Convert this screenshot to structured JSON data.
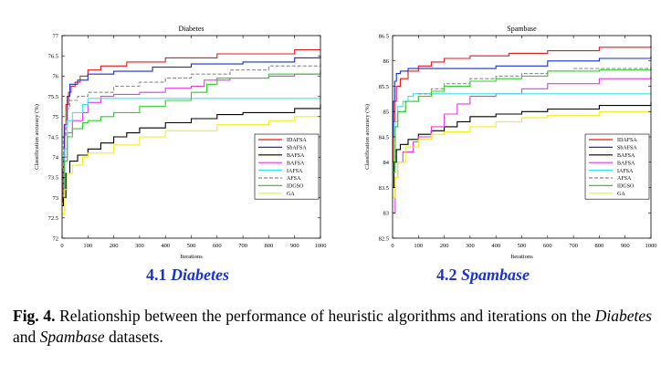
{
  "figure": {
    "panel_labels": [
      {
        "number": "4.1",
        "name": "Diabetes"
      },
      {
        "number": "4.2",
        "name": "Spambase"
      }
    ],
    "caption": {
      "fig_no": "Fig. 4.",
      "part1": " Relationship between the performance of heuristic algorithms and iterations on the ",
      "dataset1": "Diabetes",
      "part2": " and ",
      "dataset2": "Spambase",
      "part3": " datasets."
    }
  },
  "colors": {
    "IDAFSA": "#e8191b",
    "SbAFSA": "#1a2fd6",
    "BAFSA": "#000000",
    "BAFSA_m": "#e33ce6",
    "IAFSA": "#36e6ee",
    "AFSA": "#8c8c8c",
    "IDGSO": "#2fd02a",
    "GA": "#f2ee1c"
  },
  "chart_data": [
    {
      "type": "line",
      "title": "Diabetes",
      "xlabel": "Iterations",
      "ylabel": "Classification accuracy (%)",
      "xlim": [
        0,
        1000
      ],
      "ylim": [
        72,
        77
      ],
      "xticks": [
        "0",
        "100",
        "200",
        "300",
        "400",
        "500",
        "600",
        "700",
        "800",
        "900",
        "1000"
      ],
      "yticks": [
        "72",
        "72.5",
        "73",
        "73.5",
        "74",
        "74.5",
        "75",
        "75.5",
        "76",
        "76.5",
        "77"
      ],
      "grid": false,
      "legend_position": "middle-right",
      "series": [
        {
          "name": "IDAFSA",
          "color_key": "IDAFSA",
          "dashed": false,
          "points": [
            [
              0,
              72.9
            ],
            [
              3,
              73.7
            ],
            [
              8,
              74.8
            ],
            [
              15,
              75.3
            ],
            [
              25,
              75.6
            ],
            [
              35,
              75.75
            ],
            [
              50,
              75.85
            ],
            [
              70,
              76.0
            ],
            [
              100,
              76.15
            ],
            [
              150,
              76.25
            ],
            [
              250,
              76.35
            ],
            [
              400,
              76.45
            ],
            [
              600,
              76.55
            ],
            [
              900,
              76.65
            ],
            [
              1000,
              76.65
            ]
          ]
        },
        {
          "name": "SbAFSA",
          "color_key": "SbAFSA",
          "dashed": false,
          "points": [
            [
              0,
              73.1
            ],
            [
              5,
              74.0
            ],
            [
              10,
              74.8
            ],
            [
              20,
              75.5
            ],
            [
              30,
              75.8
            ],
            [
              60,
              75.9
            ],
            [
              100,
              76.05
            ],
            [
              200,
              76.12
            ],
            [
              350,
              76.22
            ],
            [
              500,
              76.3
            ],
            [
              700,
              76.35
            ],
            [
              900,
              76.45
            ],
            [
              1000,
              76.5
            ]
          ]
        },
        {
          "name": "BAFSA",
          "color_key": "BAFSA",
          "dashed": false,
          "points": [
            [
              0,
              72.8
            ],
            [
              5,
              73.0
            ],
            [
              15,
              73.6
            ],
            [
              30,
              73.9
            ],
            [
              60,
              74.05
            ],
            [
              100,
              74.2
            ],
            [
              150,
              74.35
            ],
            [
              200,
              74.5
            ],
            [
              250,
              74.6
            ],
            [
              300,
              74.72
            ],
            [
              400,
              74.85
            ],
            [
              500,
              74.95
            ],
            [
              600,
              75.05
            ],
            [
              700,
              75.1
            ],
            [
              900,
              75.2
            ],
            [
              1000,
              75.3
            ]
          ]
        },
        {
          "name": "BAFSA",
          "color_key": "BAFSA_m",
          "dashed": false,
          "points": [
            [
              0,
              73.2
            ],
            [
              10,
              74.0
            ],
            [
              20,
              74.6
            ],
            [
              40,
              74.9
            ],
            [
              80,
              75.1
            ],
            [
              100,
              75.35
            ],
            [
              150,
              75.5
            ],
            [
              200,
              75.55
            ],
            [
              300,
              75.6
            ],
            [
              400,
              75.7
            ],
            [
              500,
              75.75
            ],
            [
              550,
              75.9
            ],
            [
              650,
              75.95
            ],
            [
              800,
              76.0
            ],
            [
              900,
              76.05
            ],
            [
              1000,
              76.1
            ]
          ]
        },
        {
          "name": "IAFSA",
          "color_key": "IAFSA",
          "dashed": false,
          "points": [
            [
              0,
              73.4
            ],
            [
              10,
              74.2
            ],
            [
              20,
              74.9
            ],
            [
              40,
              75.1
            ],
            [
              80,
              75.3
            ],
            [
              100,
              75.45
            ],
            [
              200,
              75.45
            ],
            [
              500,
              75.45
            ],
            [
              1000,
              75.5
            ]
          ]
        },
        {
          "name": "AFSA",
          "color_key": "AFSA",
          "dashed": true,
          "points": [
            [
              0,
              73.0
            ],
            [
              5,
              74.5
            ],
            [
              15,
              75.2
            ],
            [
              30,
              75.4
            ],
            [
              60,
              75.5
            ],
            [
              100,
              75.6
            ],
            [
              200,
              75.75
            ],
            [
              300,
              75.85
            ],
            [
              400,
              75.95
            ],
            [
              500,
              76.05
            ],
            [
              650,
              76.15
            ],
            [
              800,
              76.25
            ],
            [
              1000,
              76.35
            ]
          ]
        },
        {
          "name": "IDGSO",
          "color_key": "IDGSO",
          "dashed": false,
          "points": [
            [
              0,
              73.0
            ],
            [
              10,
              73.9
            ],
            [
              20,
              74.5
            ],
            [
              40,
              74.7
            ],
            [
              80,
              74.85
            ],
            [
              100,
              74.9
            ],
            [
              150,
              75.0
            ],
            [
              200,
              75.1
            ],
            [
              300,
              75.25
            ],
            [
              400,
              75.4
            ],
            [
              500,
              75.6
            ],
            [
              560,
              75.8
            ],
            [
              600,
              75.95
            ],
            [
              800,
              76.05
            ],
            [
              1000,
              76.15
            ]
          ]
        },
        {
          "name": "GA",
          "color_key": "GA",
          "dashed": false,
          "points": [
            [
              0,
              72.6
            ],
            [
              10,
              73.2
            ],
            [
              20,
              73.6
            ],
            [
              40,
              73.8
            ],
            [
              80,
              74.0
            ],
            [
              100,
              74.1
            ],
            [
              200,
              74.3
            ],
            [
              300,
              74.5
            ],
            [
              400,
              74.65
            ],
            [
              600,
              74.8
            ],
            [
              800,
              74.9
            ],
            [
              900,
              75.0
            ],
            [
              1000,
              75.05
            ]
          ]
        }
      ]
    },
    {
      "type": "line",
      "title": "Spambase",
      "xlabel": "Iterations",
      "ylabel": "Classification accuracy (%)",
      "xlim": [
        0,
        1000
      ],
      "ylim": [
        82.5,
        86.5
      ],
      "xticks": [
        "0",
        "100",
        "200",
        "300",
        "400",
        "500",
        "600",
        "700",
        "800",
        "900",
        "1000"
      ],
      "yticks": [
        "82.5",
        "83",
        "83.5",
        "84",
        "84.5",
        "85",
        "85.5",
        "86",
        "86.5"
      ],
      "grid": false,
      "legend_position": "middle-right",
      "series": [
        {
          "name": "IDAFSA",
          "color_key": "IDAFSA",
          "dashed": false,
          "points": [
            [
              0,
              84.0
            ],
            [
              3,
              84.8
            ],
            [
              8,
              85.2
            ],
            [
              15,
              85.5
            ],
            [
              30,
              85.65
            ],
            [
              60,
              85.8
            ],
            [
              100,
              85.9
            ],
            [
              150,
              85.98
            ],
            [
              200,
              86.05
            ],
            [
              300,
              86.1
            ],
            [
              450,
              86.15
            ],
            [
              600,
              86.2
            ],
            [
              800,
              86.27
            ],
            [
              1000,
              86.3
            ]
          ]
        },
        {
          "name": "SbAFSA",
          "color_key": "SbAFSA",
          "dashed": false,
          "points": [
            [
              0,
              84.5
            ],
            [
              3,
              85.2
            ],
            [
              8,
              85.6
            ],
            [
              15,
              85.75
            ],
            [
              30,
              85.8
            ],
            [
              60,
              85.85
            ],
            [
              200,
              85.85
            ],
            [
              400,
              85.9
            ],
            [
              600,
              86.0
            ],
            [
              800,
              86.05
            ],
            [
              1000,
              86.1
            ]
          ]
        },
        {
          "name": "BAFSA",
          "color_key": "BAFSA",
          "dashed": false,
          "points": [
            [
              0,
              83.5
            ],
            [
              5,
              84.0
            ],
            [
              15,
              84.25
            ],
            [
              30,
              84.35
            ],
            [
              60,
              84.45
            ],
            [
              100,
              84.55
            ],
            [
              150,
              84.62
            ],
            [
              200,
              84.7
            ],
            [
              250,
              84.8
            ],
            [
              300,
              84.9
            ],
            [
              400,
              84.95
            ],
            [
              500,
              85.0
            ],
            [
              600,
              85.05
            ],
            [
              800,
              85.12
            ],
            [
              1000,
              85.18
            ]
          ]
        },
        {
          "name": "BAFSA",
          "color_key": "BAFSA_m",
          "dashed": false,
          "points": [
            [
              0,
              83.0
            ],
            [
              10,
              83.7
            ],
            [
              20,
              84.0
            ],
            [
              40,
              84.2
            ],
            [
              80,
              84.4
            ],
            [
              100,
              84.5
            ],
            [
              150,
              84.7
            ],
            [
              200,
              84.95
            ],
            [
              250,
              85.15
            ],
            [
              300,
              85.3
            ],
            [
              400,
              85.35
            ],
            [
              500,
              85.45
            ],
            [
              600,
              85.55
            ],
            [
              800,
              85.65
            ],
            [
              1000,
              85.7
            ]
          ]
        },
        {
          "name": "IAFSA",
          "color_key": "IAFSA",
          "dashed": false,
          "points": [
            [
              0,
              84.0
            ],
            [
              10,
              84.8
            ],
            [
              20,
              85.1
            ],
            [
              40,
              85.2
            ],
            [
              60,
              85.3
            ],
            [
              80,
              85.35
            ],
            [
              200,
              85.35
            ],
            [
              500,
              85.35
            ],
            [
              1000,
              85.35
            ]
          ]
        },
        {
          "name": "AFSA",
          "color_key": "AFSA",
          "dashed": true,
          "points": [
            [
              0,
              83.8
            ],
            [
              10,
              84.7
            ],
            [
              20,
              85.0
            ],
            [
              50,
              85.2
            ],
            [
              100,
              85.35
            ],
            [
              150,
              85.45
            ],
            [
              200,
              85.55
            ],
            [
              300,
              85.65
            ],
            [
              400,
              85.7
            ],
            [
              500,
              85.75
            ],
            [
              600,
              85.8
            ],
            [
              700,
              85.85
            ],
            [
              1000,
              85.88
            ]
          ]
        },
        {
          "name": "IDGSO",
          "color_key": "IDGSO",
          "dashed": false,
          "points": [
            [
              0,
              83.8
            ],
            [
              10,
              84.7
            ],
            [
              20,
              85.0
            ],
            [
              50,
              85.2
            ],
            [
              100,
              85.3
            ],
            [
              150,
              85.4
            ],
            [
              200,
              85.5
            ],
            [
              300,
              85.6
            ],
            [
              400,
              85.65
            ],
            [
              500,
              85.7
            ],
            [
              600,
              85.8
            ],
            [
              800,
              85.82
            ],
            [
              1000,
              85.85
            ]
          ]
        },
        {
          "name": "GA",
          "color_key": "GA",
          "dashed": false,
          "points": [
            [
              0,
              83.3
            ],
            [
              10,
              83.7
            ],
            [
              20,
              84.0
            ],
            [
              50,
              84.3
            ],
            [
              100,
              84.45
            ],
            [
              150,
              84.55
            ],
            [
              200,
              84.6
            ],
            [
              300,
              84.7
            ],
            [
              400,
              84.8
            ],
            [
              500,
              84.88
            ],
            [
              600,
              84.92
            ],
            [
              800,
              85.0
            ],
            [
              1000,
              85.05
            ]
          ]
        }
      ]
    }
  ]
}
